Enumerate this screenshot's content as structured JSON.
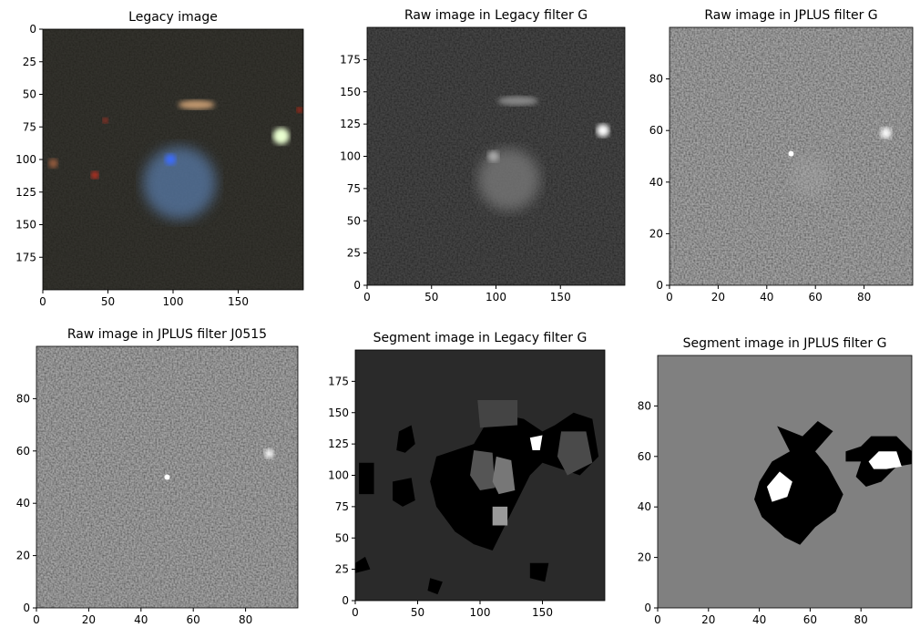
{
  "chart_data": [
    {
      "type": "image",
      "title": "Legacy image",
      "xlim": [
        0,
        200
      ],
      "ylim": [
        200,
        0
      ],
      "xticks": [
        0,
        50,
        100,
        150
      ],
      "yticks": [
        0,
        25,
        50,
        75,
        100,
        125,
        150,
        175
      ]
    },
    {
      "type": "image",
      "title": "Raw image in Legacy filter G",
      "xlim": [
        0,
        200
      ],
      "ylim": [
        0,
        200
      ],
      "xticks": [
        0,
        50,
        100,
        150
      ],
      "yticks": [
        0,
        25,
        50,
        75,
        100,
        125,
        150,
        175
      ]
    },
    {
      "type": "image",
      "title": "Raw image in JPLUS filter G",
      "xlim": [
        0,
        100
      ],
      "ylim": [
        0,
        100
      ],
      "xticks": [
        0,
        20,
        40,
        60,
        80
      ],
      "yticks": [
        0,
        20,
        40,
        60,
        80
      ]
    },
    {
      "type": "image",
      "title": "Raw image in JPLUS filter J0515",
      "xlim": [
        0,
        100
      ],
      "ylim": [
        0,
        100
      ],
      "xticks": [
        0,
        20,
        40,
        60,
        80
      ],
      "yticks": [
        0,
        20,
        40,
        60,
        80
      ]
    },
    {
      "type": "image",
      "title": "Segment image in Legacy filter G",
      "xlim": [
        0,
        200
      ],
      "ylim": [
        0,
        200
      ],
      "xticks": [
        0,
        50,
        100,
        150
      ],
      "yticks": [
        0,
        25,
        50,
        75,
        100,
        125,
        150,
        175
      ]
    },
    {
      "type": "image",
      "title": "Segment image in JPLUS filter G",
      "xlim": [
        0,
        100
      ],
      "ylim": [
        0,
        100
      ],
      "xticks": [
        0,
        20,
        40,
        60,
        80
      ],
      "yticks": [
        0,
        20,
        40,
        60,
        80
      ]
    }
  ]
}
